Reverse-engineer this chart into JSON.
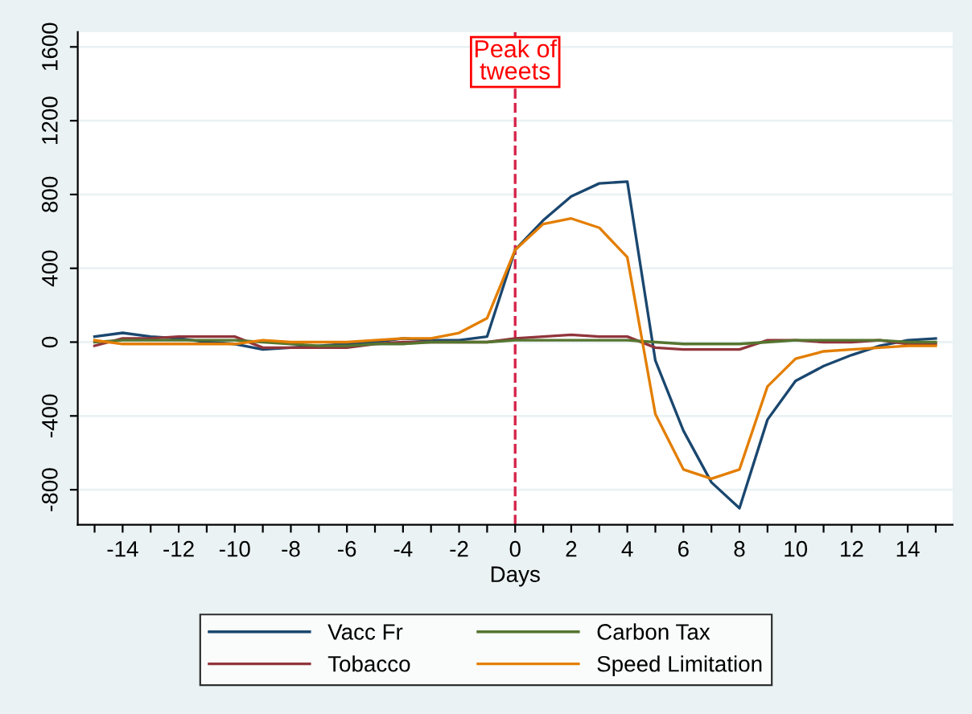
{
  "chart_data": {
    "type": "line",
    "xlabel": "Days",
    "x": [
      -15,
      -14,
      -13,
      -12,
      -11,
      -10,
      -9,
      -8,
      -7,
      -6,
      -5,
      -4,
      -3,
      -2,
      -1,
      0,
      1,
      2,
      3,
      4,
      5,
      6,
      7,
      8,
      9,
      10,
      11,
      12,
      13,
      14,
      15
    ],
    "series": [
      {
        "name": "Vacc Fr",
        "color": "#1a476f",
        "values": [
          30,
          50,
          30,
          20,
          0,
          -10,
          -40,
          -30,
          -20,
          -10,
          0,
          20,
          10,
          10,
          30,
          500,
          660,
          790,
          860,
          870,
          -100,
          -480,
          -760,
          -900,
          -420,
          -210,
          -130,
          -70,
          -20,
          10,
          20
        ]
      },
      {
        "name": "Tobacco",
        "color": "#90353b",
        "values": [
          -20,
          20,
          20,
          30,
          30,
          30,
          -30,
          -30,
          -30,
          -30,
          -10,
          0,
          0,
          0,
          0,
          20,
          30,
          40,
          30,
          30,
          -30,
          -40,
          -40,
          -40,
          10,
          10,
          0,
          0,
          10,
          -10,
          -10
        ]
      },
      {
        "name": "Carbon Tax",
        "color": "#55752f",
        "values": [
          0,
          10,
          10,
          10,
          10,
          10,
          0,
          -10,
          -20,
          -20,
          -10,
          -10,
          0,
          0,
          0,
          10,
          10,
          10,
          10,
          10,
          0,
          -10,
          -10,
          -10,
          0,
          10,
          10,
          10,
          10,
          0,
          0
        ]
      },
      {
        "name": "Speed Limitation",
        "color": "#e37e00",
        "values": [
          10,
          -10,
          -10,
          -10,
          -10,
          -10,
          10,
          0,
          0,
          0,
          10,
          20,
          20,
          50,
          130,
          500,
          640,
          670,
          620,
          460,
          -390,
          -690,
          -740,
          -690,
          -240,
          -90,
          -50,
          -40,
          -30,
          -20,
          -20
        ]
      }
    ],
    "xlim": [
      -15.6,
      15.6
    ],
    "xticks": [
      {
        "value": -15,
        "label": null
      },
      -14,
      {
        "value": -13,
        "label": null
      },
      -12,
      {
        "value": -11,
        "label": null
      },
      -10,
      {
        "value": -9,
        "label": null
      },
      -8,
      {
        "value": -7,
        "label": null
      },
      -6,
      {
        "value": -5,
        "label": null
      },
      -4,
      {
        "value": -3,
        "label": null
      },
      -2,
      {
        "value": -1,
        "label": null
      },
      0,
      {
        "value": 1,
        "label": null
      },
      2,
      {
        "value": 3,
        "label": null
      },
      4,
      {
        "value": 5,
        "label": null
      },
      6,
      {
        "value": 7,
        "label": null
      },
      8,
      {
        "value": 9,
        "label": null
      },
      10,
      {
        "value": 11,
        "label": null
      },
      12,
      {
        "value": 13,
        "label": null
      },
      14,
      {
        "value": 15,
        "label": null
      }
    ],
    "ylim": [
      -990,
      1680
    ],
    "yticks": [
      -800,
      -400,
      0,
      400,
      800,
      1200,
      1600
    ],
    "grid": "y",
    "legend": "bottom",
    "ref_lines": [
      {
        "axis": "x",
        "value": 0,
        "label": "Peak of\ntweets",
        "color": "#d6244a",
        "line_style": "dashed"
      }
    ]
  }
}
